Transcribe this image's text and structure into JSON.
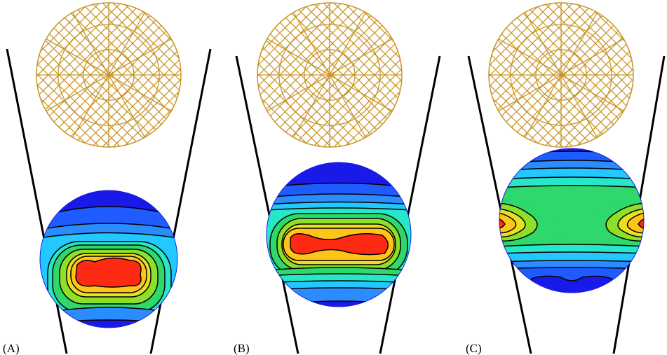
{
  "figure": {
    "panels": [
      {
        "label": "(A)"
      },
      {
        "label": "(B)"
      },
      {
        "label": "(C)"
      }
    ]
  },
  "colors": {
    "background": "#ffffff",
    "wall_line": "#000000",
    "mesh_line": "#c8962a",
    "contour_line": "#000000",
    "contour_scale": [
      "#1a1ae8",
      "#1f5cff",
      "#2a8cff",
      "#22c8ff",
      "#26e8c8",
      "#2ed86a",
      "#8de02a",
      "#e8e020",
      "#ffc418",
      "#ff2a14"
    ]
  }
}
